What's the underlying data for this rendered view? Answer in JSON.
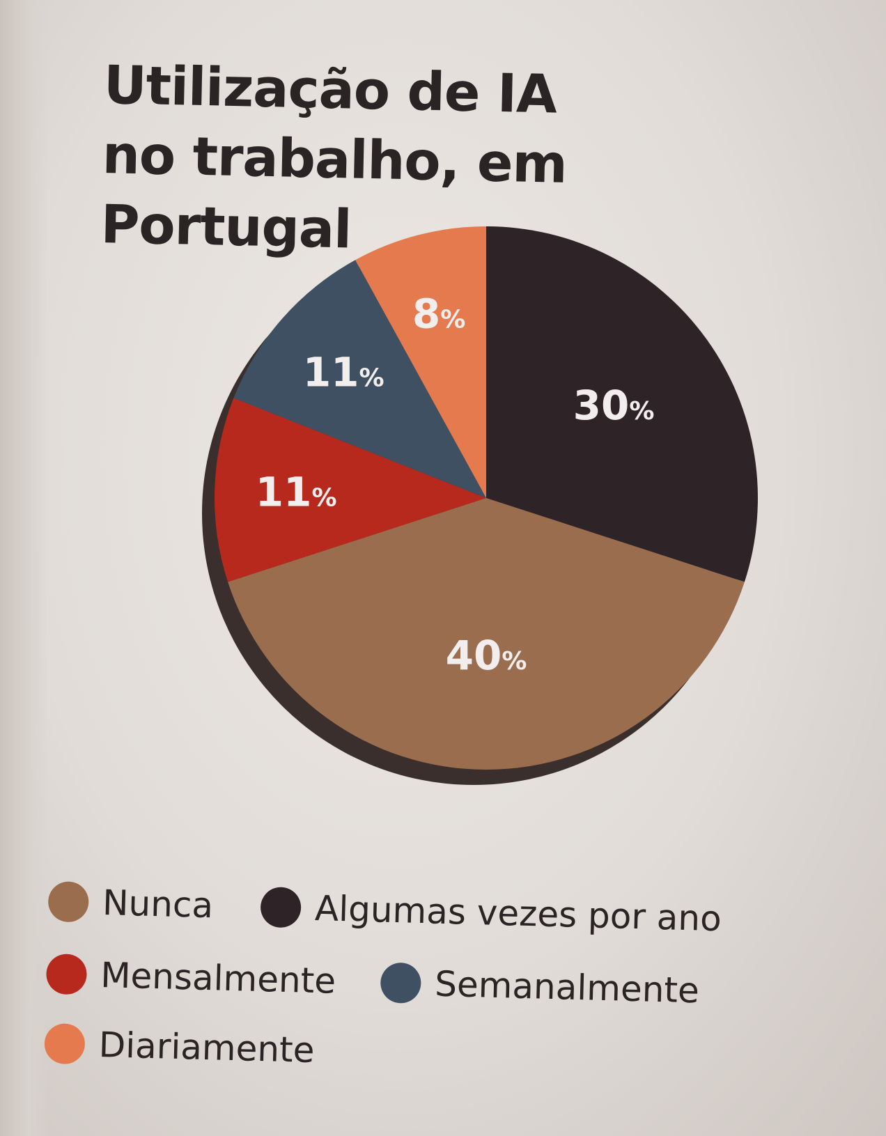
{
  "chart_data": {
    "type": "pie",
    "title": "Utilização de IA no trabalho, em Portugal",
    "title_lines": [
      "Utilização de IA",
      "no trabalho, em Portugal"
    ],
    "unit": "%",
    "slices": [
      {
        "name": "Algumas vezes por ano",
        "value": 30,
        "label": "30%",
        "color": "#2e2428"
      },
      {
        "name": "Nunca",
        "value": 40,
        "label": "40%",
        "color": "#9a6d4e"
      },
      {
        "name": "Mensalmente",
        "value": 11,
        "label": "11%",
        "color": "#b8291d"
      },
      {
        "name": "Semanalmente",
        "value": 11,
        "label": "11%",
        "color": "#3e5062"
      },
      {
        "name": "Diariamente",
        "value": 8,
        "label": "8%",
        "color": "#e57a4e"
      }
    ],
    "legend": [
      {
        "name": "Nunca",
        "color": "#9a6d4e"
      },
      {
        "name": "Algumas vezes por ano",
        "color": "#2e2428"
      },
      {
        "name": "Mensalmente",
        "color": "#b8291d"
      },
      {
        "name": "Semanalmente",
        "color": "#3e5062"
      },
      {
        "name": "Diariamente",
        "color": "#e57a4e"
      }
    ],
    "start": "12 o'clock, clockwise",
    "legend_placement": "bottom"
  }
}
